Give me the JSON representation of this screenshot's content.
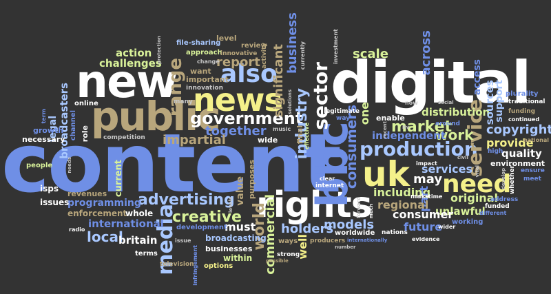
{
  "palette": {
    "background": "#333333",
    "white": "#ffffff",
    "blue": "#6f8fe6",
    "light_blue": "#a9c8ff",
    "tan": "#b8a67c",
    "green": "#d9f29a",
    "yellow": "#f4f08a",
    "gray": "#c8c8c8"
  },
  "words": [
    {
      "text": "content",
      "color": "#6f8fe6"
    },
    {
      "text": "digital",
      "color": "#ffffff"
    },
    {
      "text": "new",
      "color": "#ffffff"
    },
    {
      "text": "public",
      "color": "#b8a67c"
    },
    {
      "text": "news",
      "color": "#f4f08a"
    },
    {
      "text": "rights",
      "color": "#ffffff"
    },
    {
      "text": "uk",
      "color": "#f4f08a"
    },
    {
      "text": "need",
      "color": "#f4f08a"
    },
    {
      "text": "bbc",
      "color": "#6f8fe6"
    },
    {
      "text": "production",
      "color": "#a9c8ff"
    },
    {
      "text": "government",
      "color": "#ffffff"
    },
    {
      "text": "also",
      "color": "#a9c8ff"
    },
    {
      "text": "media",
      "color": "#a9c8ff"
    },
    {
      "text": "advertising",
      "color": "#a9c8ff"
    },
    {
      "text": "sector",
      "color": "#ffffff"
    },
    {
      "text": "range",
      "color": "#b8a67c"
    },
    {
      "text": "service",
      "color": "#b8a67c"
    },
    {
      "text": "industry",
      "color": "#a9c8ff"
    },
    {
      "text": "consumers",
      "color": "#6f8fe6"
    },
    {
      "text": "creative",
      "color": "#d9f29a"
    },
    {
      "text": "market",
      "color": "#d9f29a"
    },
    {
      "text": "world",
      "color": "#b8a67c"
    },
    {
      "text": "commercial",
      "color": "#d9f29a"
    },
    {
      "text": "together",
      "color": "#6f8fe6"
    },
    {
      "text": "impartial",
      "color": "#b8a67c"
    },
    {
      "text": "copyright",
      "color": "#a9c8ff"
    },
    {
      "text": "significant",
      "color": "#b8a67c"
    },
    {
      "text": "business",
      "color": "#6f8fe6"
    },
    {
      "text": "across",
      "color": "#6f8fe6"
    },
    {
      "text": "scale",
      "color": "#d9f29a"
    },
    {
      "text": "report",
      "color": "#b8a67c"
    },
    {
      "text": "action",
      "color": "#d9f29a"
    },
    {
      "text": "challenges",
      "color": "#d9f29a"
    },
    {
      "text": "broadcasters",
      "color": "#a9c8ff"
    },
    {
      "text": "work",
      "color": "#d9f29a"
    },
    {
      "text": "distribution",
      "color": "#d9f29a"
    },
    {
      "text": "independent",
      "color": "#6f8fe6"
    },
    {
      "text": "one",
      "color": "#d9f29a"
    },
    {
      "text": "services",
      "color": "#a9c8ff"
    },
    {
      "text": "may",
      "color": "#ffffff"
    },
    {
      "text": "including",
      "color": "#d9f29a"
    },
    {
      "text": "original",
      "color": "#d9f29a"
    },
    {
      "text": "provide",
      "color": "#f4f08a"
    },
    {
      "text": "sources",
      "color": "#a9c8ff"
    },
    {
      "text": "support",
      "color": "#a9c8ff"
    },
    {
      "text": "access",
      "color": "#6f8fe6"
    },
    {
      "text": "quality",
      "color": "#ffffff"
    },
    {
      "text": "environment",
      "color": "#ffffff"
    },
    {
      "text": "unlawful",
      "color": "#d9f29a"
    },
    {
      "text": "consumer",
      "color": "#ffffff"
    },
    {
      "text": "future",
      "color": "#6f8fe6"
    },
    {
      "text": "part",
      "color": "#6f8fe6"
    },
    {
      "text": "regional",
      "color": "#b8a67c"
    },
    {
      "text": "models",
      "color": "#a9c8ff"
    },
    {
      "text": "holders",
      "color": "#a9c8ff"
    },
    {
      "text": "well",
      "color": "#f4f08a"
    },
    {
      "text": "must",
      "color": "#ffffff"
    },
    {
      "text": "value",
      "color": "#b8a67c"
    },
    {
      "text": "purposes",
      "color": "#b8a67c"
    },
    {
      "text": "local",
      "color": "#a9c8ff"
    },
    {
      "text": "britain",
      "color": "#ffffff"
    },
    {
      "text": "international",
      "color": "#6f8fe6"
    },
    {
      "text": "programming",
      "color": "#6f8fe6"
    },
    {
      "text": "issues",
      "color": "#ffffff"
    },
    {
      "text": "revenues",
      "color": "#b8a67c"
    },
    {
      "text": "enforcement",
      "color": "#b8a67c"
    },
    {
      "text": "whole",
      "color": "#ffffff"
    },
    {
      "text": "current",
      "color": "#d9f29a"
    },
    {
      "text": "isps",
      "color": "#ffffff"
    },
    {
      "text": "people",
      "color": "#d9f29a"
    },
    {
      "text": "legal",
      "color": "#a9c8ff"
    },
    {
      "text": "growth",
      "color": "#6f8fe6"
    },
    {
      "text": "necessary",
      "color": "#ffffff"
    },
    {
      "text": "role",
      "color": "#ffffff"
    },
    {
      "text": "channel",
      "color": "#6f8fe6"
    },
    {
      "text": "competition",
      "color": "#c8c8c8"
    },
    {
      "text": "online",
      "color": "#ffffff"
    },
    {
      "text": "term",
      "color": "#6f8fe6"
    },
    {
      "text": "many",
      "color": "#c8c8c8"
    },
    {
      "text": "innovation",
      "color": "#c8c8c8"
    },
    {
      "text": "important",
      "color": "#b8a67c"
    },
    {
      "text": "want",
      "color": "#b8a67c"
    },
    {
      "text": "approach",
      "color": "#d9f29a"
    },
    {
      "text": "file-sharing",
      "color": "#a9c8ff"
    },
    {
      "text": "protection",
      "color": "#c8c8c8"
    },
    {
      "text": "level",
      "color": "#b8a67c"
    },
    {
      "text": "review",
      "color": "#b8a67c"
    },
    {
      "text": "innovative",
      "color": "#b8a67c"
    },
    {
      "text": "change",
      "color": "#c8c8c8"
    },
    {
      "text": "activity",
      "color": "#b8a67c"
    },
    {
      "text": "currently",
      "color": "#c8c8c8"
    },
    {
      "text": "investment",
      "color": "#c8c8c8"
    },
    {
      "text": "solutions",
      "color": "#c8c8c8"
    },
    {
      "text": "legitimate",
      "color": "#ffffff"
    },
    {
      "text": "way",
      "color": "#6f8fe6"
    },
    {
      "text": "music",
      "color": "#c8c8c8"
    },
    {
      "text": "effective",
      "color": "#d9f29a"
    },
    {
      "text": "final",
      "color": "#b8a67c"
    },
    {
      "text": "wide",
      "color": "#ffffff"
    },
    {
      "text": "enable",
      "color": "#ffffff"
    },
    {
      "text": "recent",
      "color": "#c8c8c8"
    },
    {
      "text": "now",
      "color": "#c8c8c8"
    },
    {
      "text": "social",
      "color": "#c8c8c8"
    },
    {
      "text": "around",
      "color": "#6f8fe6"
    },
    {
      "text": "itv",
      "color": "#c8c8c8"
    },
    {
      "text": "plurality",
      "color": "#6f8fe6"
    },
    {
      "text": "traditional",
      "color": "#ffffff"
    },
    {
      "text": "continued",
      "color": "#ffffff"
    },
    {
      "text": "funding",
      "color": "#b8a67c"
    },
    {
      "text": "national",
      "color": "#b8a67c"
    },
    {
      "text": "high",
      "color": "#6f8fe6"
    },
    {
      "text": "civil",
      "color": "#c8c8c8"
    },
    {
      "text": "impact",
      "color": "#ffffff"
    },
    {
      "text": "make",
      "color": "#ffffff"
    },
    {
      "text": "time",
      "color": "#ffffff"
    },
    {
      "text": "vital",
      "color": "#c8c8c8"
    },
    {
      "text": "develop",
      "color": "#c8c8c8"
    },
    {
      "text": "whether",
      "color": "#ffffff"
    },
    {
      "text": "ensure",
      "color": "#6f8fe6"
    },
    {
      "text": "meet",
      "color": "#6f8fe6"
    },
    {
      "text": "address",
      "color": "#6f8fe6"
    },
    {
      "text": "funded",
      "color": "#ffffff"
    },
    {
      "text": "different",
      "color": "#6f8fe6"
    },
    {
      "text": "working",
      "color": "#6f8fe6"
    },
    {
      "text": "wider",
      "color": "#ffffff"
    },
    {
      "text": "evidence",
      "color": "#ffffff"
    },
    {
      "text": "nations",
      "color": "#ffffff"
    },
    {
      "text": "internationally",
      "color": "#6f8fe6"
    },
    {
      "text": "worldwide",
      "color": "#ffffff"
    },
    {
      "text": "number",
      "color": "#c8c8c8"
    },
    {
      "text": "producers",
      "color": "#b8a67c"
    },
    {
      "text": "ways",
      "color": "#b8a67c"
    },
    {
      "text": "possible",
      "color": "#b8a67c"
    },
    {
      "text": "strong",
      "color": "#ffffff"
    },
    {
      "text": "much",
      "color": "#ffffff"
    },
    {
      "text": "forward",
      "color": "#c8c8c8"
    },
    {
      "text": "internet",
      "color": "#ffffff"
    },
    {
      "text": "clear",
      "color": "#ffffff"
    },
    {
      "text": "broadcasting",
      "color": "#a9c8ff"
    },
    {
      "text": "development",
      "color": "#6f8fe6"
    },
    {
      "text": "businesses",
      "color": "#ffffff"
    },
    {
      "text": "within",
      "color": "#d9f29a"
    },
    {
      "text": "options",
      "color": "#f4f08a"
    },
    {
      "text": "television",
      "color": "#b8a67c"
    },
    {
      "text": "infringement",
      "color": "#6f8fe6"
    },
    {
      "text": "issue",
      "color": "#c8c8c8"
    },
    {
      "text": "terms",
      "color": "#ffffff"
    },
    {
      "text": "radio",
      "color": "#ffffff"
    },
    {
      "text": "needs",
      "color": "#c8c8c8"
    },
    {
      "text": "levels",
      "color": "#c8c8c8"
    }
  ]
}
